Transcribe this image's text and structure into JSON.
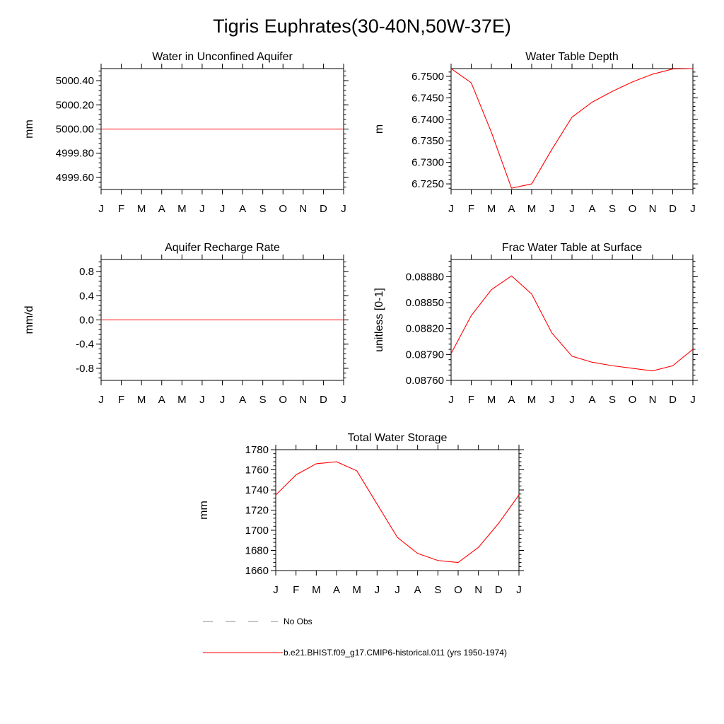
{
  "page": {
    "title": "Tigris Euphrates(30-40N,50W-37E)"
  },
  "colors": {
    "model_line": "#ff0000",
    "obs_line": "#8c8c8c",
    "axis": "#000000"
  },
  "chart_data": [
    {
      "type": "line",
      "title": "Water in Unconfined Aquifer",
      "ylabel": "mm",
      "xlabel": "",
      "categories": [
        "J",
        "F",
        "M",
        "A",
        "M",
        "J",
        "J",
        "A",
        "S",
        "O",
        "N",
        "D",
        "J"
      ],
      "ylim": [
        4999.5,
        5000.5
      ],
      "yticks": [
        4999.6,
        4999.8,
        5000.0,
        5000.2,
        5000.4
      ],
      "ytick_labels": [
        "4999.60",
        "4999.80",
        "5000.00",
        "5000.20",
        "5000.40"
      ],
      "grid": false,
      "series": [
        {
          "values": [
            5000,
            5000,
            5000,
            5000,
            5000,
            5000,
            5000,
            5000,
            5000,
            5000,
            5000,
            5000,
            5000
          ]
        }
      ]
    },
    {
      "type": "line",
      "title": "Water Table Depth",
      "ylabel": "m",
      "xlabel": "",
      "categories": [
        "J",
        "F",
        "M",
        "A",
        "M",
        "J",
        "J",
        "A",
        "S",
        "O",
        "N",
        "D",
        "J"
      ],
      "ylim": [
        6.7237,
        6.7518
      ],
      "yticks": [
        6.725,
        6.73,
        6.735,
        6.74,
        6.745,
        6.75
      ],
      "ytick_labels": [
        "6.7250",
        "6.7300",
        "6.7350",
        "6.7400",
        "6.7450",
        "6.7500"
      ],
      "grid": false,
      "series": [
        {
          "values": [
            6.7518,
            6.7485,
            6.737,
            6.724,
            6.725,
            6.733,
            6.7405,
            6.744,
            6.7465,
            6.7487,
            6.7505,
            6.7517,
            6.7518
          ]
        }
      ]
    },
    {
      "type": "line",
      "title": "Aquifer Recharge Rate",
      "ylabel": "mm/d",
      "xlabel": "",
      "categories": [
        "J",
        "F",
        "M",
        "A",
        "M",
        "J",
        "J",
        "A",
        "S",
        "O",
        "N",
        "D",
        "J"
      ],
      "ylim": [
        -1.0,
        1.0
      ],
      "yticks": [
        -0.8,
        -0.4,
        0.0,
        0.4,
        0.8
      ],
      "ytick_labels": [
        "-0.8",
        "-0.4",
        "0.0",
        "0.4",
        "0.8"
      ],
      "grid": false,
      "series": [
        {
          "values": [
            0,
            0,
            0,
            0,
            0,
            0,
            0,
            0,
            0,
            0,
            0,
            0,
            0
          ]
        }
      ]
    },
    {
      "type": "line",
      "title": "Frac Water Table at Surface",
      "ylabel": "unitless [0-1]",
      "xlabel": "",
      "categories": [
        "J",
        "F",
        "M",
        "A",
        "M",
        "J",
        "J",
        "A",
        "S",
        "O",
        "N",
        "D",
        "J"
      ],
      "ylim": [
        0.0876,
        0.089
      ],
      "yticks": [
        0.0876,
        0.0879,
        0.0882,
        0.0885,
        0.0888
      ],
      "ytick_labels": [
        "0.08760",
        "0.08790",
        "0.08820",
        "0.08850",
        "0.08880"
      ],
      "grid": false,
      "series": [
        {
          "values": [
            0.08791,
            0.08835,
            0.08865,
            0.08881,
            0.0886,
            0.08815,
            0.08788,
            0.08781,
            0.08777,
            0.08774,
            0.08771,
            0.08777,
            0.08796
          ]
        }
      ]
    },
    {
      "type": "line",
      "title": "Total Water Storage",
      "ylabel": "mm",
      "xlabel": "",
      "categories": [
        "J",
        "F",
        "M",
        "A",
        "M",
        "J",
        "J",
        "A",
        "S",
        "O",
        "N",
        "D",
        "J"
      ],
      "ylim": [
        1660,
        1780
      ],
      "yticks": [
        1660,
        1680,
        1700,
        1720,
        1740,
        1760,
        1780
      ],
      "ytick_labels": [
        "1660",
        "1680",
        "1700",
        "1720",
        "1740",
        "1760",
        "1780"
      ],
      "grid": false,
      "series": [
        {
          "values": [
            1735,
            1755,
            1766,
            1768,
            1759,
            1726,
            1693,
            1677,
            1670,
            1668,
            1683,
            1707,
            1735
          ]
        }
      ]
    }
  ],
  "legend": {
    "placement": "bottom",
    "entries": [
      {
        "label": "No Obs",
        "style": "dashed",
        "color": "#8c8c8c"
      },
      {
        "label": "b.e21.BHIST.f09_g17.CMIP6-historical.011 (yrs 1950-1974)",
        "style": "solid",
        "color": "#ff0000"
      }
    ]
  }
}
